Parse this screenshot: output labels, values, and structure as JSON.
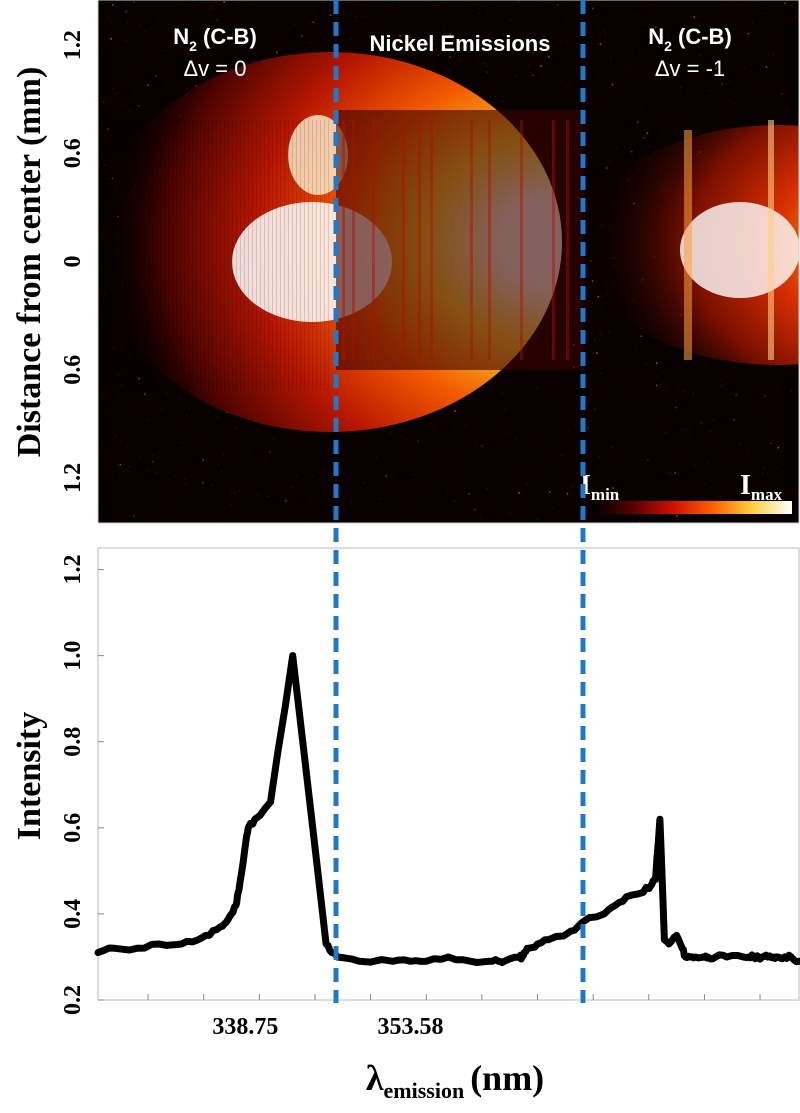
{
  "chart_data": [
    {
      "type": "heatmap",
      "ylabel": "Distance from center (mm)",
      "y_ticks": [
        "1.2",
        "0.6",
        "0",
        "0.6",
        "1.2"
      ],
      "y_tick_values": [
        1.2,
        0.6,
        0,
        -0.6,
        -1.2
      ],
      "ylim": [
        -1.45,
        1.45
      ],
      "region_labels": [
        {
          "species": "N",
          "subscript": "2",
          "band": "(C-B)",
          "transition": "Δv = 0"
        },
        {
          "species": "Nickel Emissions",
          "subscript": "",
          "band": "",
          "transition": ""
        },
        {
          "species": "N",
          "subscript": "2",
          "band": "(C-B)",
          "transition": "Δv = -1"
        }
      ],
      "colorbar": {
        "min_label": "I",
        "min_sub": "min",
        "max_label": "I",
        "max_sub": "max"
      },
      "colormap": [
        "#000000",
        "#3a0000",
        "#9a0a00",
        "#ff3000",
        "#ffa000",
        "#ffff80",
        "#ffffff"
      ]
    },
    {
      "type": "line",
      "ylabel": "Intensity",
      "xlabel": "λ",
      "xlabel_sub": "emission",
      "xlabel_unit": "(nm)",
      "xlim": [
        325.5,
        388.5
      ],
      "ylim": [
        0.2,
        1.25
      ],
      "y_ticks": [
        0.2,
        0.4,
        0.6,
        0.8,
        1.0,
        1.2
      ],
      "y_tick_labels": [
        "0.2",
        "0.4",
        "0.6",
        "0.8",
        "1.0",
        "1.2"
      ],
      "x_tick_labels": [
        "338.75",
        "353.58"
      ],
      "x_tick_values": [
        338.75,
        353.58
      ],
      "series_color": "#000000",
      "x": [
        325.5,
        327.0,
        329.0,
        331.0,
        333.0,
        334.5,
        335.5,
        336.5,
        337.0,
        337.5,
        337.9,
        338.1,
        338.3,
        338.55,
        338.8,
        339.0,
        339.6,
        341.0,
        343.0,
        346.0,
        346.5,
        347.0,
        349.0,
        352.0,
        353.58,
        355.0,
        357.0,
        359.0,
        360.7,
        361.5,
        362.0,
        363.4,
        363.6,
        363.8,
        364.2,
        365.0,
        366.0,
        368.0,
        369.0,
        371.0,
        372.0,
        373.0,
        374.5,
        375.3,
        375.6,
        376.0,
        376.4,
        376.8,
        377.5,
        378.0,
        378.3,
        378.7,
        379.2,
        380.0,
        380.3,
        381.0,
        382.0,
        383.5,
        384.0,
        384.4,
        384.9,
        385.2,
        385.7,
        386.2,
        386.6,
        387.2,
        387.8,
        388.5
      ],
      "y": [
        0.31,
        0.32,
        0.32,
        0.33,
        0.33,
        0.34,
        0.35,
        0.37,
        0.38,
        0.4,
        0.42,
        0.45,
        0.48,
        0.52,
        0.57,
        0.6,
        0.62,
        0.66,
        1.0,
        0.33,
        0.31,
        0.3,
        0.29,
        0.29,
        0.29,
        0.29,
        0.3,
        0.29,
        0.29,
        0.29,
        0.29,
        0.3,
        0.3,
        0.31,
        0.32,
        0.33,
        0.34,
        0.36,
        0.38,
        0.4,
        0.42,
        0.44,
        0.45,
        0.47,
        0.48,
        0.62,
        0.34,
        0.33,
        0.35,
        0.32,
        0.3,
        0.3,
        0.3,
        0.3,
        0.3,
        0.3,
        0.3,
        0.3,
        0.3,
        0.3,
        0.3,
        0.3,
        0.3,
        0.3,
        0.3,
        0.3,
        0.3,
        0.29
      ]
    }
  ]
}
